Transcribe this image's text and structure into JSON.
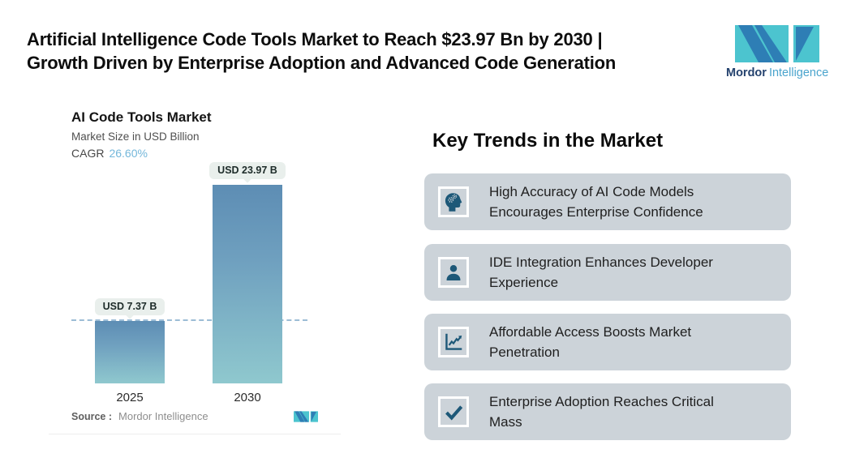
{
  "header": {
    "title_lines": [
      "Artificial Intelligence Code Tools Market to Reach $23.97 Bn by 2030 |",
      "Growth Driven by Enterprise Adoption and Advanced Code Generation"
    ]
  },
  "brand": {
    "name_bold": "Mordor",
    "name_light": "Intelligence",
    "colors": {
      "mark_blue": "#2e7eb5",
      "mark_teal": "#4cc4cf",
      "text_navy": "#24426e",
      "text_light_blue": "#4aa4cd"
    }
  },
  "chart_data": {
    "type": "bar",
    "title": "AI Code Tools Market",
    "subtitle": "Market Size in USD Billion",
    "cagr_label": "CAGR",
    "cagr_value": "26.60%",
    "categories": [
      "2025",
      "2030"
    ],
    "values": [
      7.37,
      23.97
    ],
    "bar_labels": [
      "USD 7.37 B",
      "USD 23.97 B"
    ],
    "unit": "USD Billion",
    "ylim": [
      0,
      23.97
    ],
    "reference_line_value": 7.37,
    "grid": "off",
    "legend": "none",
    "bar_gradient_top": "#5d8db4",
    "bar_gradient_bottom": "#8fc8ce",
    "reference_line_color": "#9cbdd6",
    "source_label": "Source :",
    "source_value": "Mordor Intelligence"
  },
  "trends": {
    "heading": "Key Trends in the Market",
    "card_bg": "#ccd3d9",
    "icon_color": "#1d5878",
    "items": [
      {
        "icon": "head-gears-icon",
        "text": "High Accuracy of AI Code Models Encourages Enterprise Confidence"
      },
      {
        "icon": "person-icon",
        "text": "IDE Integration Enhances Developer Experience"
      },
      {
        "icon": "line-chart-icon",
        "text": "Affordable Access Boosts Market Penetration"
      },
      {
        "icon": "checkmark-icon",
        "text": "Enterprise Adoption Reaches Critical Mass"
      }
    ]
  }
}
